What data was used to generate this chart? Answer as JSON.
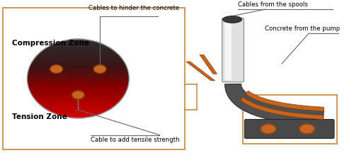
{
  "fig_width": 5.0,
  "fig_height": 2.16,
  "dpi": 100,
  "bg_color": "#ffffff",
  "border_color": "#c8843c",
  "compression_label": "Compression Zone",
  "tension_label": "Tension Zone",
  "cable_hinder_label": "Cables to hinder the concrete",
  "cable_tensile_label": "Cable to add tensile strength",
  "cables_spools_label": "Cables from the spools",
  "concrete_pump_label": "Concrete from the pump",
  "orange_cable_color": "#c86420",
  "dark_gray": "#484848",
  "annotation_line_color": "#666666"
}
